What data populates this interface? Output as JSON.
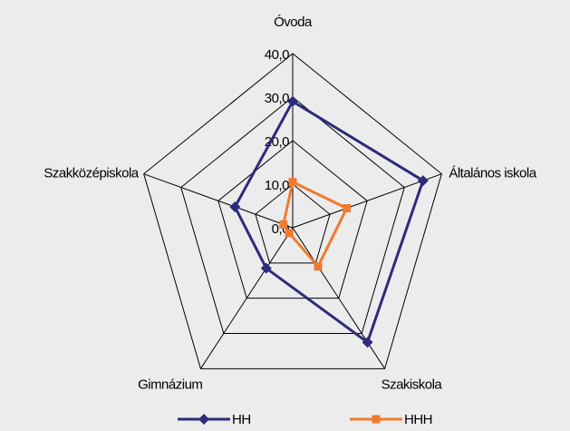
{
  "chart_data": {
    "type": "radar",
    "categories": [
      "Óvoda",
      "Általános iskola",
      "Szakiskola",
      "Gimnázium",
      "Szakközépiskola"
    ],
    "series": [
      {
        "name": "HH",
        "color": "#2e2a7c",
        "values": [
          29,
          35,
          32.5,
          11.5,
          15.5
        ]
      },
      {
        "name": "HHH",
        "color": "#f07a30",
        "values": [
          10.5,
          14.5,
          11,
          1.5,
          2.5
        ]
      }
    ],
    "ylim": [
      0,
      40
    ],
    "yticks": [
      {
        "value": 0,
        "label": "0,0"
      },
      {
        "value": 10,
        "label": "10,0"
      },
      {
        "value": 20,
        "label": "20,0"
      },
      {
        "value": 30,
        "label": "30,0"
      },
      {
        "value": 40,
        "label": "40,0"
      }
    ],
    "grid": true,
    "legend": "bottom"
  }
}
